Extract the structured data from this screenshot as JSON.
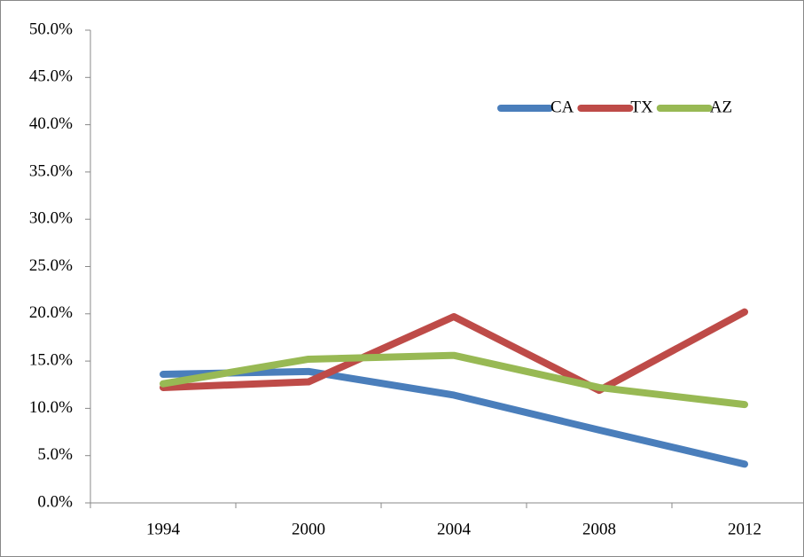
{
  "chart_data": {
    "type": "line",
    "categories": [
      "1994",
      "2000",
      "2004",
      "2008",
      "2012"
    ],
    "series": [
      {
        "name": "CA",
        "color": "#4a7ebb",
        "values": [
          13.6,
          13.9,
          11.4,
          7.7,
          4.1
        ]
      },
      {
        "name": "TX",
        "color": "#be4b48",
        "values": [
          12.2,
          12.8,
          19.7,
          11.9,
          20.2
        ]
      },
      {
        "name": "AZ",
        "color": "#98b954",
        "values": [
          12.6,
          15.2,
          15.6,
          12.2,
          10.4
        ]
      }
    ],
    "ylim": [
      0,
      50
    ],
    "yticks": [
      {
        "value": 0,
        "label": "0.0%"
      },
      {
        "value": 5,
        "label": "5.0%"
      },
      {
        "value": 10,
        "label": "10.0%"
      },
      {
        "value": 15,
        "label": "15.0%"
      },
      {
        "value": 20,
        "label": "20.0%"
      },
      {
        "value": 25,
        "label": "25.0%"
      },
      {
        "value": 30,
        "label": "30.0%"
      },
      {
        "value": 35,
        "label": "35.0%"
      },
      {
        "value": 40,
        "label": "40.0%"
      },
      {
        "value": 45,
        "label": "45.0%"
      },
      {
        "value": 50,
        "label": "50.0%"
      }
    ],
    "legend": "top-right",
    "grid": false
  }
}
